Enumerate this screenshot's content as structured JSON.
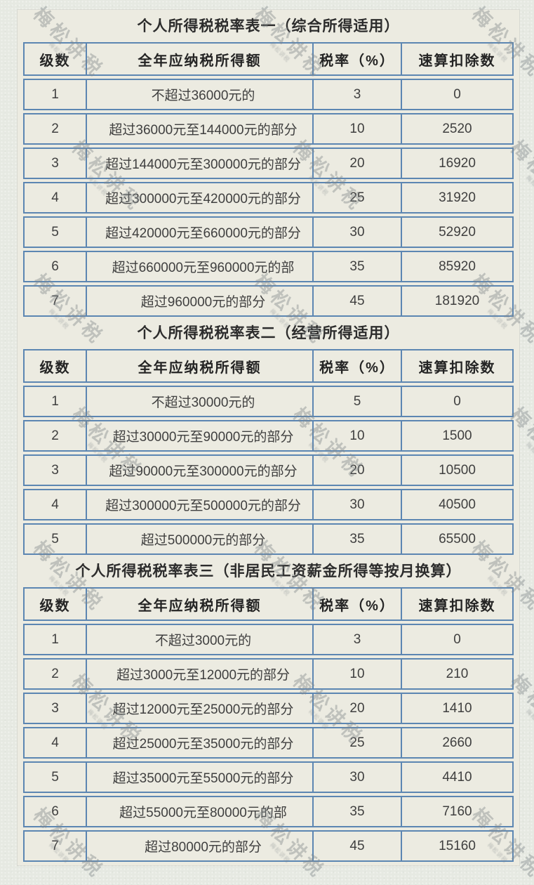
{
  "page": {
    "background_color": "#e6e9e2",
    "panel_color": "#ecebe1",
    "border_color": "#5c86b2",
    "text_color": "#3a3a3a",
    "watermark_text": "梅松讲税"
  },
  "tables": [
    {
      "title": "个人所得税税率表一（综合所得适用）",
      "columns": [
        "级数",
        "全年应纳税所得额",
        "税率（%）",
        "速算扣除数"
      ],
      "rows": [
        [
          "1",
          "不超过36000元的",
          "3",
          "0"
        ],
        [
          "2",
          "超过36000元至144000元的部分",
          "10",
          "2520"
        ],
        [
          "3",
          "超过144000元至300000元的部分",
          "20",
          "16920"
        ],
        [
          "4",
          "超过300000元至420000元的部分",
          "25",
          "31920"
        ],
        [
          "5",
          "超过420000元至660000元的部分",
          "30",
          "52920"
        ],
        [
          "6",
          "超过660000元至960000元的部",
          "35",
          "85920"
        ],
        [
          "7",
          "超过960000元的部分",
          "45",
          "181920"
        ]
      ]
    },
    {
      "title": "个人所得税税率表二（经营所得适用）",
      "columns": [
        "级数",
        "全年应纳税所得额",
        "税率（%）",
        "速算扣除数"
      ],
      "rows": [
        [
          "1",
          "不超过30000元的",
          "5",
          "0"
        ],
        [
          "2",
          "超过30000元至90000元的部分",
          "10",
          "1500"
        ],
        [
          "3",
          "超过90000元至300000元的部分",
          "20",
          "10500"
        ],
        [
          "4",
          "超过300000元至500000元的部分",
          "30",
          "40500"
        ],
        [
          "5",
          "超过500000元的部分",
          "35",
          "65500"
        ]
      ]
    },
    {
      "title": "个人所得税税率表三（非居民工资薪金所得等按月换算）",
      "columns": [
        "级数",
        "全年应纳税所得额",
        "税率（%）",
        "速算扣除数"
      ],
      "rows": [
        [
          "1",
          "不超过3000元的",
          "3",
          "0"
        ],
        [
          "2",
          "超过3000元至12000元的部分",
          "10",
          "210"
        ],
        [
          "3",
          "超过12000元至25000元的部分",
          "20",
          "1410"
        ],
        [
          "4",
          "超过25000元至35000元的部分",
          "25",
          "2660"
        ],
        [
          "5",
          "超过35000元至55000元的部分",
          "30",
          "4410"
        ],
        [
          "6",
          "超过55000元至80000元的部",
          "35",
          "7160"
        ],
        [
          "7",
          "超过80000元的部分",
          "45",
          "15160"
        ]
      ]
    }
  ]
}
